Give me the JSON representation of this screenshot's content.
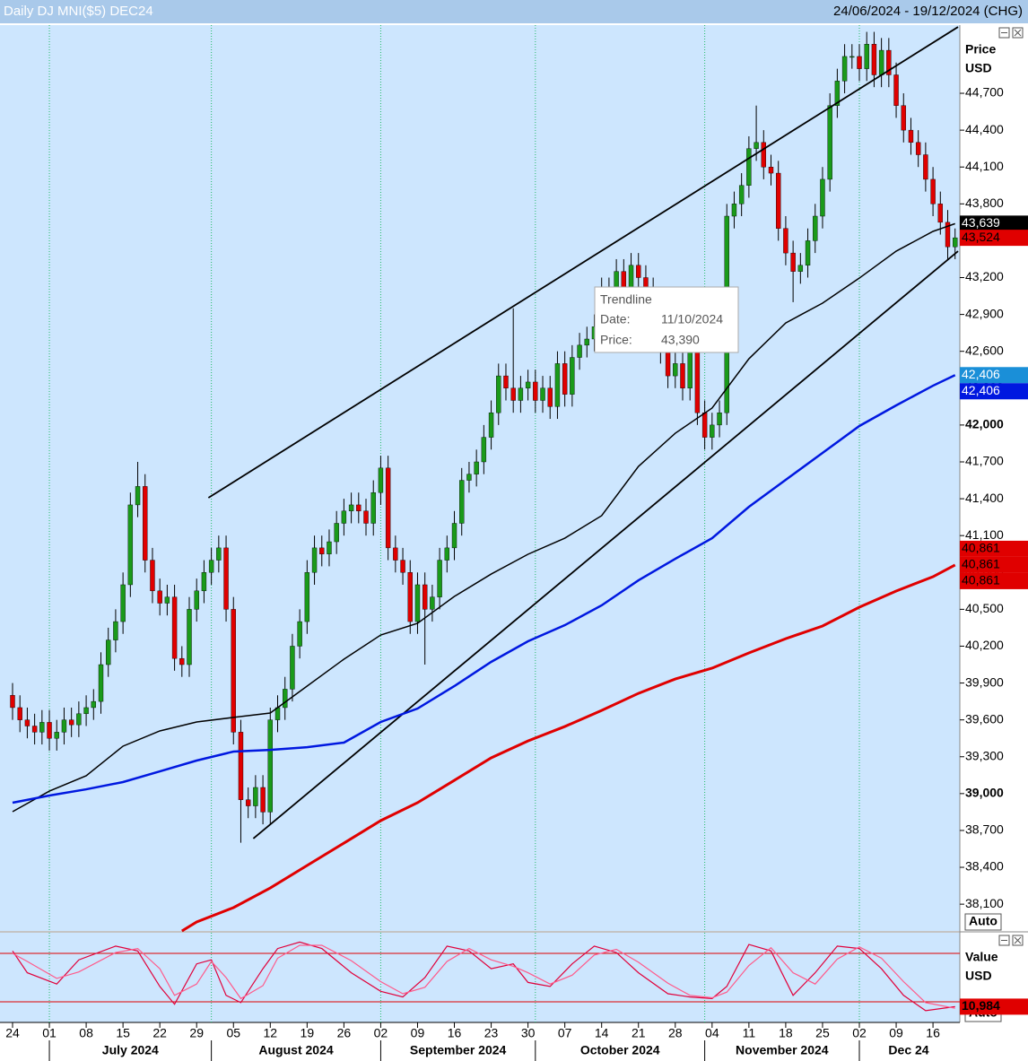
{
  "header": {
    "title": "Daily DJ MNI($5) DEC24",
    "range": "24/06/2024 - 19/12/2024 (CHG)"
  },
  "chart_data": [
    {
      "type": "candlestick",
      "axis_title": [
        "Price",
        "USD"
      ],
      "auto_label": "Auto",
      "ylim": [
        37882,
        45255
      ],
      "yticks": [
        {
          "value": 38100,
          "label": "38,100"
        },
        {
          "value": 38400,
          "label": "38,400"
        },
        {
          "value": 38700,
          "label": "38,700"
        },
        {
          "value": 39000,
          "label": "39,000",
          "bold": true
        },
        {
          "value": 39300,
          "label": "39,300"
        },
        {
          "value": 39600,
          "label": "39,600"
        },
        {
          "value": 39900,
          "label": "39,900"
        },
        {
          "value": 40200,
          "label": "40,200"
        },
        {
          "value": 40500,
          "label": "40,500"
        },
        {
          "value": 40800,
          "label": "40,800"
        },
        {
          "value": 41100,
          "label": "41,100"
        },
        {
          "value": 41400,
          "label": "41,400"
        },
        {
          "value": 41700,
          "label": "41,700"
        },
        {
          "value": 42000,
          "label": "42,000",
          "bold": true
        },
        {
          "value": 42300,
          "label": "42,300"
        },
        {
          "value": 42600,
          "label": "42,600"
        },
        {
          "value": 42900,
          "label": "42,900"
        },
        {
          "value": 43200,
          "label": "43,200"
        },
        {
          "value": 43500,
          "label": "43,500"
        },
        {
          "value": 43800,
          "label": "43,800"
        },
        {
          "value": 44100,
          "label": "44,100"
        },
        {
          "value": 44400,
          "label": "44,400"
        },
        {
          "value": 44700,
          "label": "44,700"
        }
      ],
      "xlim": [
        -0.73,
        128.4
      ],
      "xticks": [
        {
          "value": 0,
          "label": "24"
        },
        {
          "value": 5,
          "label": "01"
        },
        {
          "value": 10,
          "label": "08"
        },
        {
          "value": 15,
          "label": "15"
        },
        {
          "value": 20,
          "label": "22"
        },
        {
          "value": 25,
          "label": "29"
        },
        {
          "value": 30,
          "label": "05"
        },
        {
          "value": 35,
          "label": "12"
        },
        {
          "value": 40,
          "label": "19"
        },
        {
          "value": 45,
          "label": "26"
        },
        {
          "value": 50,
          "label": "02"
        },
        {
          "value": 55,
          "label": "09"
        },
        {
          "value": 60,
          "label": "16"
        },
        {
          "value": 65,
          "label": "23"
        },
        {
          "value": 70,
          "label": "30"
        },
        {
          "value": 75,
          "label": "07"
        },
        {
          "value": 80,
          "label": "14"
        },
        {
          "value": 85,
          "label": "21"
        },
        {
          "value": 90,
          "label": "28"
        },
        {
          "value": 95,
          "label": "04"
        },
        {
          "value": 100,
          "label": "11"
        },
        {
          "value": 105,
          "label": "18"
        },
        {
          "value": 110,
          "label": "25"
        },
        {
          "value": 115,
          "label": "02"
        },
        {
          "value": 120,
          "label": "09"
        },
        {
          "value": 125,
          "label": "16"
        }
      ],
      "months": [
        "July 2024",
        "August 2024",
        "September 2024",
        "October 2024",
        "November 2024",
        "Dec 24"
      ],
      "month_starts": [
        5,
        27,
        50,
        71,
        94,
        115
      ],
      "up_color": "#1a9a1a",
      "down_color": "#e00000",
      "open": [
        39800,
        39700,
        39600,
        39550,
        39500,
        39580,
        39450,
        39500,
        39600,
        39560,
        39650,
        39700,
        39750,
        40050,
        40250,
        40400,
        40700,
        41350,
        41500,
        40900,
        40650,
        40550,
        40600,
        40100,
        40050,
        40500,
        40650,
        40800,
        40900,
        41000,
        40500,
        39500,
        38950,
        38900,
        39050,
        38850,
        39600,
        39700,
        39850,
        40200,
        40400,
        40800,
        41000,
        40950,
        41050,
        41200,
        41300,
        41350,
        41300,
        41200,
        41450,
        41650,
        41000,
        40900,
        40800,
        40400,
        40700,
        40500,
        40600,
        40900,
        41000,
        41200,
        41550,
        41600,
        41700,
        41900,
        42100,
        42400,
        42300,
        42200,
        42300,
        42350,
        42200,
        42300,
        42150,
        42500,
        42250,
        42550,
        42650,
        42700,
        42800,
        43100,
        42900,
        43250,
        43100,
        43300,
        43200,
        43100,
        42800,
        42600,
        42400,
        42500,
        42300,
        42600,
        42100,
        41900,
        42000,
        42100,
        43700,
        43800,
        43950,
        44250,
        44300,
        44100,
        44050,
        43600,
        43400,
        43250,
        43300,
        43500,
        43700,
        44000,
        44600,
        44800,
        45000,
        45000,
        44900,
        45100,
        44850,
        45050,
        44850,
        44600,
        44400,
        44300,
        44200,
        44000,
        43800,
        43650,
        43450
      ],
      "high": [
        39900,
        39800,
        39700,
        39650,
        39680,
        39680,
        39600,
        39700,
        39700,
        39750,
        39800,
        39850,
        40150,
        40350,
        40500,
        40800,
        41450,
        41700,
        41600,
        41000,
        40750,
        40700,
        40700,
        40200,
        40600,
        40750,
        40900,
        41000,
        41100,
        41100,
        40600,
        39600,
        39050,
        39150,
        39150,
        39700,
        39800,
        39950,
        40300,
        40500,
        40900,
        41100,
        41100,
        41150,
        41300,
        41400,
        41450,
        41450,
        41400,
        41550,
        41750,
        41750,
        41100,
        41000,
        40900,
        40800,
        40800,
        40700,
        41000,
        41100,
        41300,
        41650,
        41700,
        41800,
        42000,
        42200,
        42500,
        42500,
        42950,
        42400,
        42450,
        42450,
        42400,
        42400,
        42600,
        42600,
        42650,
        42750,
        42800,
        42900,
        43200,
        43200,
        43350,
        43350,
        43400,
        43400,
        43300,
        43200,
        42900,
        42700,
        42600,
        42600,
        42700,
        42700,
        42200,
        42100,
        42200,
        43800,
        43900,
        44050,
        44350,
        44600,
        44400,
        44200,
        44150,
        43700,
        43500,
        43400,
        43600,
        43800,
        44100,
        44700,
        44900,
        45100,
        45100,
        45100,
        45200,
        45200,
        45150,
        45150,
        44950,
        44700,
        44500,
        44400,
        44300,
        44100,
        43900,
        43750,
        43600
      ],
      "low": [
        39600,
        39500,
        39450,
        39400,
        39400,
        39350,
        39350,
        39400,
        39460,
        39460,
        39550,
        39600,
        39650,
        39950,
        40150,
        40300,
        40600,
        41250,
        40800,
        40550,
        40450,
        40450,
        40000,
        39950,
        39950,
        40400,
        40550,
        40700,
        40800,
        40400,
        39400,
        38600,
        38800,
        38800,
        38750,
        38750,
        39500,
        39600,
        39750,
        40100,
        40300,
        40700,
        40850,
        40850,
        40950,
        41100,
        41200,
        41200,
        41100,
        41100,
        41350,
        40900,
        40800,
        40700,
        40300,
        40300,
        40050,
        40400,
        40500,
        40800,
        40900,
        41100,
        41450,
        41500,
        41600,
        41800,
        42000,
        42200,
        42100,
        42100,
        42200,
        42100,
        42100,
        42050,
        42050,
        42150,
        42150,
        42450,
        42550,
        42600,
        42700,
        42800,
        42800,
        43000,
        43000,
        43100,
        43000,
        42700,
        42500,
        42300,
        42300,
        42200,
        42200,
        42000,
        41800,
        41800,
        41900,
        42000,
        43600,
        43700,
        43850,
        44150,
        44000,
        43950,
        43500,
        43300,
        43000,
        43150,
        43200,
        43400,
        43600,
        43900,
        44500,
        44700,
        44900,
        44800,
        44800,
        44750,
        44750,
        44750,
        44500,
        44300,
        44200,
        44100,
        43900,
        43700,
        43550,
        43350,
        43350
      ],
      "close": [
        39700,
        39600,
        39550,
        39500,
        39580,
        39450,
        39500,
        39600,
        39560,
        39650,
        39700,
        39750,
        40050,
        40250,
        40400,
        40700,
        41350,
        41500,
        40900,
        40650,
        40550,
        40600,
        40100,
        40050,
        40500,
        40650,
        40800,
        40900,
        41000,
        40500,
        39500,
        38950,
        38900,
        39050,
        38850,
        39600,
        39700,
        39850,
        40200,
        40400,
        40800,
        41000,
        40950,
        41050,
        41200,
        41300,
        41350,
        41300,
        41200,
        41450,
        41650,
        41000,
        40900,
        40800,
        40400,
        40700,
        40500,
        40600,
        40900,
        41000,
        41200,
        41550,
        41600,
        41700,
        41900,
        42100,
        42400,
        42300,
        42200,
        42300,
        42350,
        42200,
        42300,
        42150,
        42500,
        42250,
        42550,
        42650,
        42700,
        42800,
        43100,
        42900,
        43250,
        43100,
        43300,
        43200,
        43100,
        42800,
        42600,
        42400,
        42500,
        42300,
        42600,
        42100,
        41900,
        42000,
        42100,
        43700,
        43800,
        43950,
        44250,
        44300,
        44100,
        44050,
        43600,
        43400,
        43250,
        43300,
        43500,
        43700,
        44000,
        44600,
        44800,
        45000,
        45000,
        44900,
        45100,
        44850,
        45050,
        44850,
        44600,
        44400,
        44300,
        44200,
        44000,
        43800,
        43650,
        43450,
        43524
      ],
      "last_label": "43,524",
      "last_label_color": "#e00000",
      "moving_averages": [
        {
          "color": "#000000",
          "width": 1.5,
          "label_colors": [
            "#000000"
          ],
          "last_label": "43,639",
          "x": [
            0,
            5,
            10,
            15,
            20,
            25,
            30,
            35,
            40,
            45,
            50,
            55,
            60,
            65,
            70,
            75,
            80,
            85,
            90,
            95,
            100,
            105,
            110,
            115,
            120,
            125,
            128
          ],
          "values": [
            38853,
            39020,
            39145,
            39386,
            39510,
            39583,
            39620,
            39656,
            39875,
            40094,
            40291,
            40386,
            40605,
            40787,
            40948,
            41079,
            41262,
            41663,
            41933,
            42138,
            42539,
            42831,
            42992,
            43196,
            43415,
            43576,
            43639
          ]
        },
        {
          "color": "#0018e0",
          "width": 2.5,
          "label_colors": [
            "#1a8fd8",
            "#0018e0"
          ],
          "last_label": "42,406",
          "x": [
            0,
            5,
            10,
            15,
            20,
            25,
            30,
            35,
            40,
            45,
            50,
            55,
            60,
            65,
            70,
            75,
            80,
            85,
            90,
            95,
            100,
            105,
            110,
            115,
            120,
            125,
            128
          ],
          "values": [
            38926,
            38984,
            39035,
            39094,
            39181,
            39269,
            39342,
            39356,
            39378,
            39415,
            39583,
            39692,
            39875,
            40072,
            40240,
            40371,
            40532,
            40736,
            40911,
            41079,
            41334,
            41554,
            41773,
            41992,
            42160,
            42320,
            42406
          ]
        },
        {
          "color": "#e00000",
          "width": 3,
          "label_colors": [
            "#e00000",
            "#e00000",
            "#e00000"
          ],
          "last_label": "40,861",
          "x": [
            23,
            25,
            30,
            35,
            40,
            45,
            50,
            55,
            60,
            65,
            70,
            75,
            80,
            85,
            90,
            95,
            100,
            105,
            110,
            115,
            120,
            125,
            128
          ],
          "values": [
            37882,
            37955,
            38072,
            38232,
            38415,
            38597,
            38780,
            38926,
            39108,
            39291,
            39429,
            39546,
            39677,
            39816,
            39933,
            40021,
            40145,
            40261,
            40364,
            40517,
            40649,
            40765,
            40861
          ]
        }
      ],
      "trendlines": [
        {
          "x": [
            26.6,
            128.4
          ],
          "values": [
            41408,
            45240
          ]
        },
        {
          "x": [
            32.7,
            128.4
          ],
          "values": [
            38634,
            43415
          ]
        }
      ],
      "tooltip": {
        "title": "Trendline",
        "rows": [
          [
            "Date:",
            "11/10/2024"
          ],
          [
            "Price:",
            "43,390"
          ]
        ]
      }
    },
    {
      "type": "line",
      "axis_title": [
        "Value",
        "USD"
      ],
      "auto_label": "Auto",
      "ylim": [
        0,
        100
      ],
      "levels": [
        80,
        20
      ],
      "level_color": "#e00000",
      "last_label": "10,984",
      "last_label_color": "#e00000",
      "series": [
        {
          "color": "#e0003a",
          "x": [
            0,
            2,
            6,
            9,
            14,
            17,
            20,
            22,
            25,
            27,
            29,
            31,
            34,
            36,
            39,
            42,
            46,
            50,
            53,
            56,
            59,
            62,
            65,
            68,
            70,
            73,
            76,
            79,
            82,
            85,
            89,
            92,
            95,
            97,
            100,
            103,
            106,
            109,
            112,
            115,
            118,
            121,
            124,
            128
          ],
          "values": [
            83,
            56,
            42,
            72,
            89,
            83,
            39,
            17,
            67,
            72,
            28,
            19,
            61,
            86,
            94,
            86,
            56,
            33,
            26,
            50,
            89,
            83,
            61,
            67,
            44,
            39,
            67,
            89,
            81,
            56,
            30,
            26,
            24,
            39,
            91,
            83,
            28,
            56,
            89,
            86,
            61,
            28,
            9,
            14
          ]
        },
        {
          "color": "#ff5a8a",
          "x": [
            0,
            2,
            6,
            9,
            14,
            17,
            20,
            22,
            25,
            27,
            29,
            31,
            34,
            36,
            39,
            42,
            46,
            50,
            53,
            56,
            59,
            62,
            65,
            68,
            70,
            73,
            76,
            79,
            82,
            85,
            89,
            92,
            95,
            97,
            100,
            103,
            106,
            109,
            112,
            115,
            118,
            121,
            124,
            128
          ],
          "values": [
            80,
            70,
            49,
            57,
            81,
            86,
            61,
            28,
            42,
            70,
            50,
            24,
            40,
            74,
            90,
            90,
            71,
            45,
            30,
            38,
            70,
            86,
            72,
            64,
            56,
            42,
            53,
            78,
            85,
            69,
            43,
            28,
            25,
            32,
            65,
            87,
            56,
            42,
            73,
            88,
            74,
            45,
            19,
            12
          ]
        }
      ]
    }
  ]
}
